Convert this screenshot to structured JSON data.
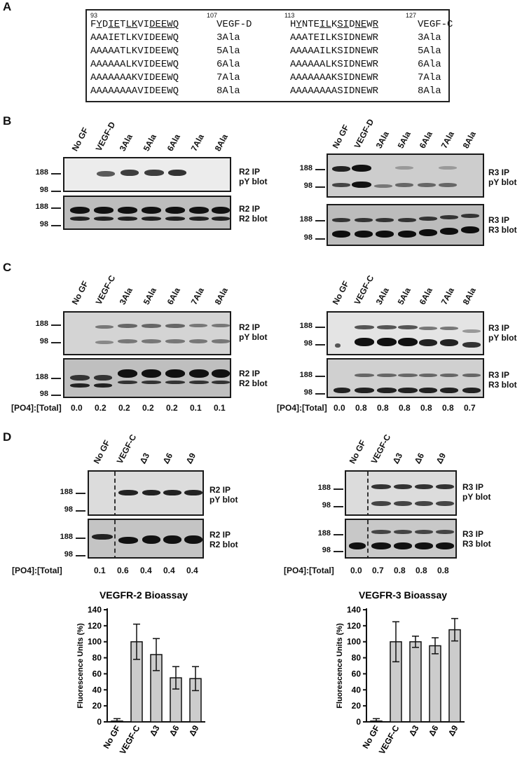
{
  "panels": {
    "a": "A",
    "b": "B",
    "c": "C",
    "d": "D"
  },
  "seq": {
    "d_start": "93",
    "d_end": "107",
    "c_start": "113",
    "c_end": "127",
    "rows": [
      {
        "d": "FYDIETLKVIDEEWQ",
        "dl": "VEGF-D",
        "c": "HYNTEILKSIDNEWR",
        "cl": "VEGF-C"
      },
      {
        "d": "AAAIETLKVIDEEWQ",
        "dl": "3Ala",
        "c": "AAATEILKSIDNEWR",
        "cl": "3Ala"
      },
      {
        "d": "AAAAATLKVIDEEWQ",
        "dl": "5Ala",
        "c": "AAAAAILKSIDNEWR",
        "cl": "5Ala"
      },
      {
        "d": "AAAAAALKVIDEEWQ",
        "dl": "6Ala",
        "c": "AAAAAALKSIDNEWR",
        "cl": "6Ala"
      },
      {
        "d": "AAAAAAAKVIDEEWQ",
        "dl": "7Ala",
        "c": "AAAAAAAKSIDNEWR",
        "cl": "7Ala"
      },
      {
        "d": "AAAAAAAAVIDEEWQ",
        "dl": "8Ala",
        "c": "AAAAAAAASIDNEWR",
        "cl": "8Ala"
      }
    ]
  },
  "lanes_b": [
    "No GF",
    "VEGF-D",
    "3Ala",
    "5Ala",
    "6Ala",
    "7Ala",
    "8Ala"
  ],
  "lanes_c": [
    "No GF",
    "VEGF-C",
    "3Ala",
    "5Ala",
    "6Ala",
    "7Ala",
    "8Ala"
  ],
  "lanes_d": [
    "No GF",
    "VEGF-C",
    "Δ3",
    "Δ6",
    "Δ9"
  ],
  "mw": {
    "hi": "188",
    "lo": "98"
  },
  "blot_labels": {
    "r2_ip": "R2 IP",
    "py": "pY blot",
    "r2_blot": "R2 blot",
    "r3_ip": "R3 IP",
    "r3_blot": "R3 blot"
  },
  "ratio_label": "[PO4]:[Total]",
  "ratios": {
    "c_left": [
      "0.0",
      "0.2",
      "0.2",
      "0.2",
      "0.2",
      "0.1",
      "0.1"
    ],
    "c_right": [
      "0.0",
      "0.8",
      "0.8",
      "0.8",
      "0.8",
      "0.8",
      "0.7"
    ],
    "d_left": [
      "0.1",
      "0.6",
      "0.4",
      "0.4",
      "0.4"
    ],
    "d_right": [
      "0.0",
      "0.7",
      "0.8",
      "0.8",
      "0.8"
    ]
  },
  "chart_data": [
    {
      "type": "bar",
      "title": "VEGFR-2 Bioassay",
      "ylabel": "Fluorescence Units (%)",
      "xlabel": "",
      "categories": [
        "No GF",
        "VEGF-C",
        "Δ3",
        "Δ6",
        "Δ9"
      ],
      "values": [
        1,
        100,
        84,
        55,
        54
      ],
      "errors": [
        3,
        22,
        20,
        14,
        15
      ],
      "ylim": [
        0,
        140
      ],
      "yticks": [
        0,
        20,
        40,
        60,
        80,
        100,
        120,
        140
      ],
      "bar_color": "#cccccc"
    },
    {
      "type": "bar",
      "title": "VEGFR-3 Bioassay",
      "ylabel": "Fluorescence Units (%)",
      "xlabel": "",
      "categories": [
        "No GF",
        "VEGF-C",
        "Δ3",
        "Δ6",
        "Δ9"
      ],
      "values": [
        1,
        100,
        100,
        95,
        115
      ],
      "errors": [
        3,
        25,
        7,
        10,
        14
      ],
      "ylim": [
        0,
        140
      ],
      "yticks": [
        0,
        20,
        40,
        60,
        80,
        100,
        120,
        140
      ],
      "bar_color": "#cccccc"
    }
  ]
}
